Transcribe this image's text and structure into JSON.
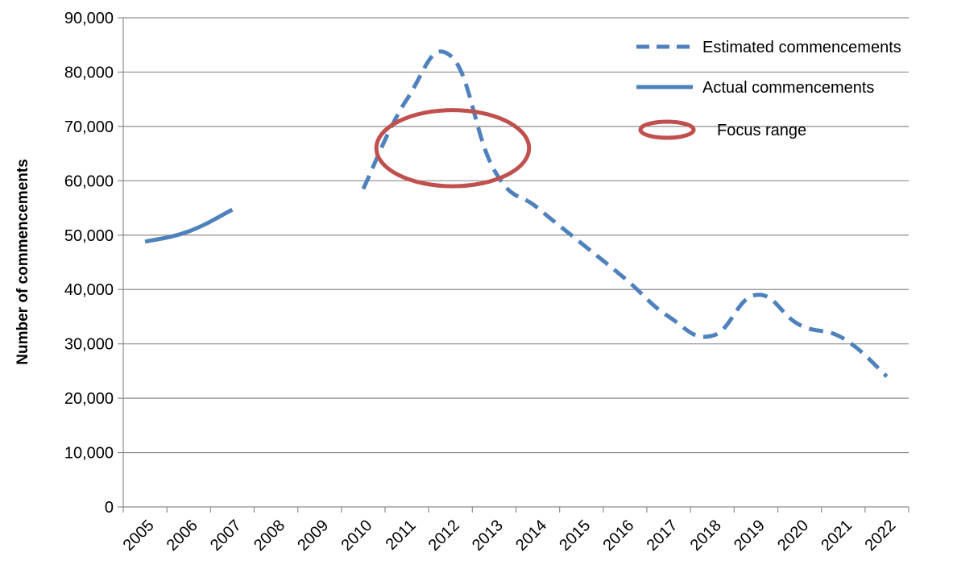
{
  "chart_data": {
    "type": "line",
    "title": "",
    "xlabel": "",
    "ylabel": "Number of commencements",
    "categories": [
      "2005",
      "2006",
      "2007",
      "2008",
      "2009",
      "2010",
      "2011",
      "2012",
      "2013",
      "2014",
      "2015",
      "2016",
      "2017",
      "2018",
      "2019",
      "2020",
      "2021",
      "2022"
    ],
    "ylim": [
      0,
      90000
    ],
    "yticks": [
      0,
      10000,
      20000,
      30000,
      40000,
      50000,
      60000,
      70000,
      80000,
      90000
    ],
    "ytick_labels": [
      "0",
      "10,000",
      "20,000",
      "30,000",
      "40,000",
      "50,000",
      "60,000",
      "70,000",
      "80,000",
      "90,000"
    ],
    "grid": true,
    "legend_position": "top-right",
    "series": [
      {
        "name": "Estimated commencements",
        "style": "dashed",
        "color": "#4f81bd",
        "values": [
          null,
          null,
          null,
          null,
          null,
          58500,
          75000,
          83000,
          62000,
          55000,
          48500,
          42000,
          35000,
          31500,
          39000,
          33500,
          31000,
          24000
        ]
      },
      {
        "name": "Actual commencements",
        "style": "solid",
        "color": "#4f81bd",
        "values": [
          48800,
          50700,
          54700,
          null,
          null,
          null,
          null,
          null,
          null,
          null,
          null,
          null,
          null,
          null,
          null,
          null,
          null,
          null
        ]
      }
    ],
    "annotations": [
      {
        "type": "ellipse",
        "label": "Focus range",
        "color": "#c0504d",
        "x_range": [
          "2010",
          "2014"
        ],
        "y_range": [
          59000,
          73000
        ]
      }
    ]
  }
}
